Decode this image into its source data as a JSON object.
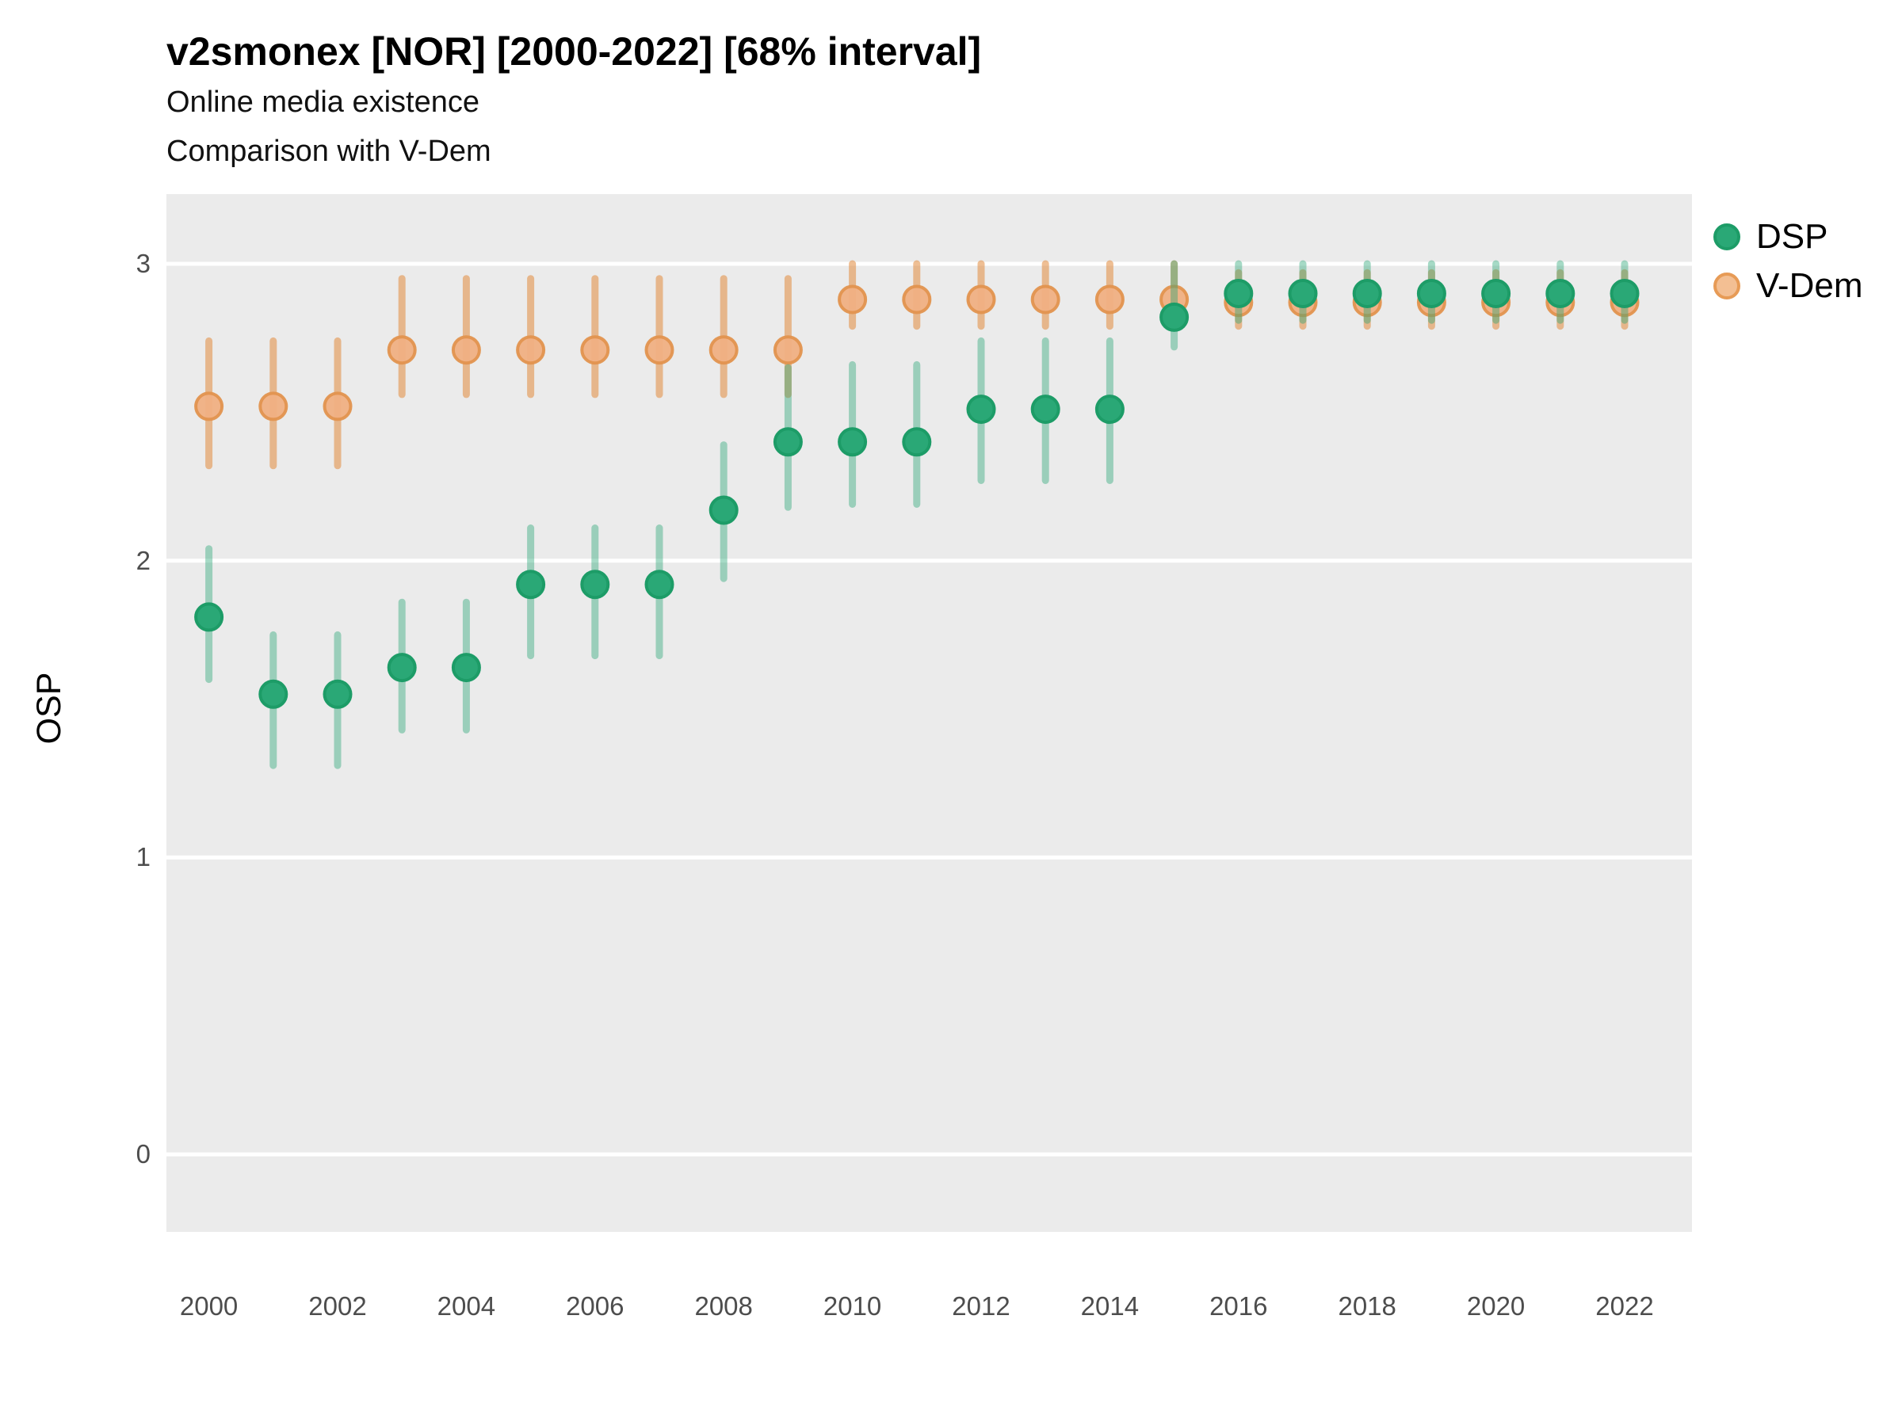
{
  "title": "v2smonex [NOR] [2000-2022] [68% interval]",
  "subtitle1": "Online media existence",
  "subtitle2": "Comparison with V-Dem",
  "y_axis": {
    "label": "OSP",
    "tick_values": [
      0,
      1,
      2,
      3
    ]
  },
  "x_axis": {
    "tick_years": [
      2000,
      2002,
      2004,
      2006,
      2008,
      2010,
      2012,
      2014,
      2016,
      2018,
      2020,
      2022
    ]
  },
  "legend": {
    "items": [
      {
        "label": "DSP",
        "series": "DSP"
      },
      {
        "label": "V-Dem",
        "series": "V-Dem"
      }
    ]
  },
  "colors": {
    "dsp_fill": "#2aa876",
    "dsp_stroke": "#1d9c67",
    "dsp_bar": "rgba(42,168,118,0.42)",
    "vdem_fill": "rgba(240,176,131,0.95)",
    "vdem_stroke": "rgba(225,148,79,0.95)",
    "vdem_bar": "rgba(226,138,60,0.55)",
    "legend_vdem_fill": "#f3bf93",
    "legend_vdem_stroke": "#e79b56",
    "panel_bg": "#ebebeb",
    "gridline": "#ffffff",
    "tick_text": "#4d4d4d",
    "title_text": "#000000"
  },
  "chart_data": {
    "type": "scatter",
    "title": "v2smonex [NOR] [2000-2022] [68% interval]",
    "subtitle": "Online media existence / Comparison with V-Dem",
    "ylabel": "OSP",
    "xlabel": "",
    "interval_label": "68% interval",
    "country": "NOR",
    "grid": "major-horizontal",
    "legend_position": "right",
    "ylim": [
      -0.27,
      3.23
    ],
    "yticks": [
      0,
      1,
      2,
      3
    ],
    "x": [
      2000,
      2001,
      2002,
      2003,
      2004,
      2005,
      2006,
      2007,
      2008,
      2009,
      2010,
      2011,
      2012,
      2013,
      2014,
      2015,
      2016,
      2017,
      2018,
      2019,
      2020,
      2021,
      2022
    ],
    "series": [
      {
        "name": "DSP",
        "values": [
          1.81,
          1.55,
          1.55,
          1.64,
          1.64,
          1.92,
          1.92,
          1.92,
          2.17,
          2.4,
          2.4,
          2.4,
          2.51,
          2.51,
          2.51,
          2.82,
          2.9,
          2.9,
          2.9,
          2.9,
          2.9,
          2.9,
          2.9
        ],
        "lower": [
          1.6,
          1.31,
          1.31,
          1.43,
          1.43,
          1.68,
          1.68,
          1.68,
          1.94,
          2.18,
          2.19,
          2.19,
          2.27,
          2.27,
          2.27,
          2.72,
          2.81,
          2.81,
          2.81,
          2.81,
          2.81,
          2.81,
          2.81
        ],
        "upper": [
          2.04,
          1.75,
          1.75,
          1.86,
          1.86,
          2.11,
          2.11,
          2.11,
          2.39,
          2.65,
          2.66,
          2.66,
          2.74,
          2.74,
          2.74,
          3.0,
          3.0,
          3.0,
          3.0,
          3.0,
          3.0,
          3.0,
          3.0
        ]
      },
      {
        "name": "V-Dem",
        "values": [
          2.52,
          2.52,
          2.52,
          2.71,
          2.71,
          2.71,
          2.71,
          2.71,
          2.71,
          2.71,
          2.88,
          2.88,
          2.88,
          2.88,
          2.88,
          2.88,
          2.87,
          2.87,
          2.87,
          2.87,
          2.87,
          2.87,
          2.87
        ],
        "lower": [
          2.32,
          2.32,
          2.32,
          2.56,
          2.56,
          2.56,
          2.56,
          2.56,
          2.56,
          2.56,
          2.79,
          2.79,
          2.79,
          2.79,
          2.79,
          2.79,
          2.79,
          2.79,
          2.79,
          2.79,
          2.79,
          2.79,
          2.79
        ],
        "upper": [
          2.74,
          2.74,
          2.74,
          2.95,
          2.95,
          2.95,
          2.95,
          2.95,
          2.95,
          2.95,
          3.0,
          3.0,
          3.0,
          3.0,
          3.0,
          3.0,
          2.97,
          2.97,
          2.97,
          2.97,
          2.97,
          2.97,
          2.97
        ]
      }
    ]
  }
}
